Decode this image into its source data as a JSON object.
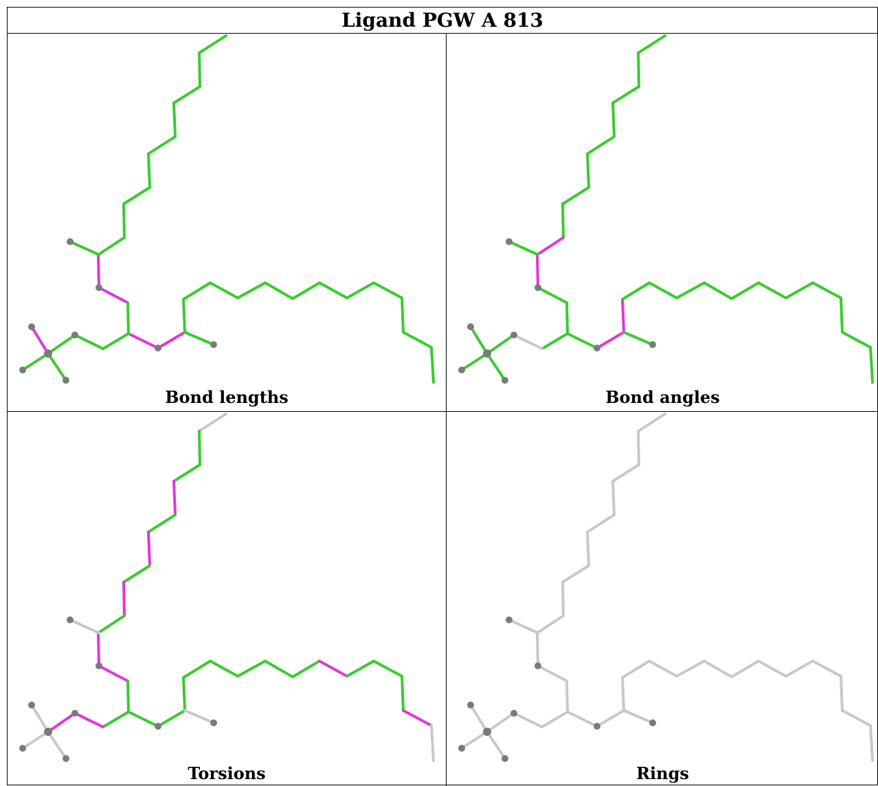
{
  "title": "Ligand PGW A 813",
  "colors": {
    "good": "#39cc2d",
    "outlier": "#e433e0",
    "neutral": "#c8c8c8",
    "atom": "#7a7a7a"
  },
  "panels": [
    {
      "caption": "Bond lengths",
      "mode": "lengths"
    },
    {
      "caption": "Bond angles",
      "mode": "angles"
    },
    {
      "caption": "Torsions",
      "mode": "torsions"
    },
    {
      "caption": "Rings",
      "mode": "rings"
    }
  ]
}
